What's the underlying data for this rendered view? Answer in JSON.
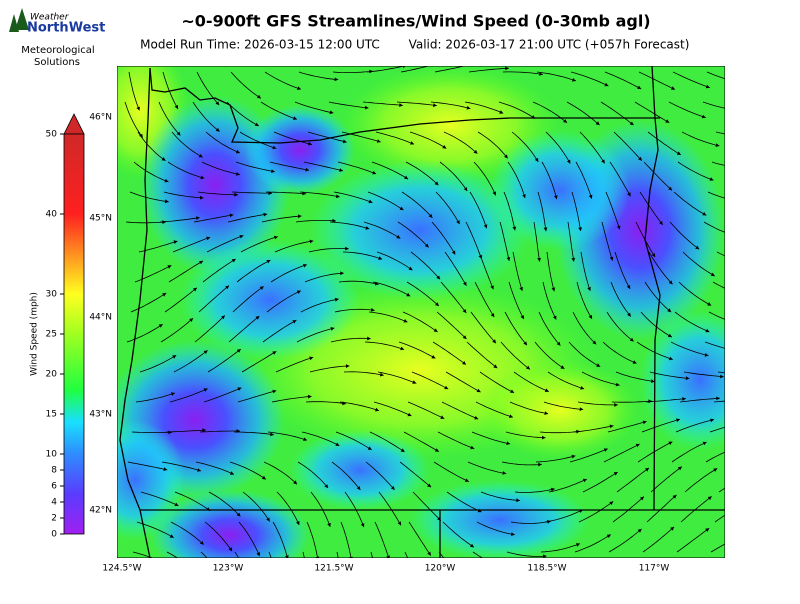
{
  "logo": {
    "line1": "Weather",
    "line2": "NorthWest",
    "line3": "Meteorological",
    "line4": "Solutions"
  },
  "header": {
    "title": "~0-900ft GFS Streamlines/Wind Speed (0-30mb agl)",
    "model_run": "Model Run Time: 2026-03-15 12:00 UTC",
    "valid": "Valid: 2026-03-17 21:00 UTC  (+057h Forecast)"
  },
  "colorbar": {
    "label": "Wind Speed (mph)",
    "ticks": [
      "0",
      "2",
      "4",
      "6",
      "8",
      "10",
      "15",
      "20",
      "25",
      "30",
      "40",
      "50"
    ]
  },
  "map": {
    "lat_labels": [
      "46°N",
      "45°N",
      "44°N",
      "43°N",
      "42°N"
    ],
    "lon_labels": [
      "124.5°W",
      "123°W",
      "121.5°W",
      "120°W",
      "118.5°W",
      "117°W"
    ]
  }
}
